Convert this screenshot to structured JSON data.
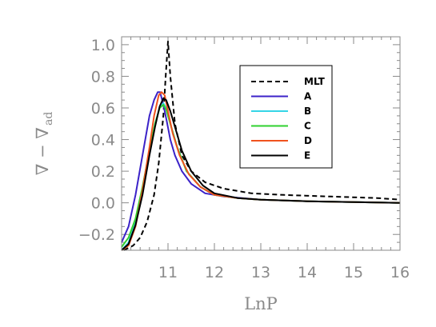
{
  "chart_data": {
    "type": "line",
    "title": "",
    "xlabel": "LnP",
    "ylabel": "∇ − ∇",
    "ylabel_subscript": "ad",
    "xlim": [
      10.0,
      16.0
    ],
    "ylim": [
      -0.3,
      1.05
    ],
    "xticks": [
      11,
      12,
      13,
      14,
      15,
      16
    ],
    "xtick_labels": [
      "11",
      "12",
      "13",
      "14",
      "15",
      "16"
    ],
    "yticks": [
      -0.2,
      0.0,
      0.2,
      0.4,
      0.6,
      0.8,
      1.0
    ],
    "ytick_labels": [
      "−0.2",
      "0.0",
      "0.2",
      "0.4",
      "0.6",
      "0.8",
      "1.0"
    ],
    "grid": false,
    "legend_position": "top-right",
    "series": [
      {
        "name": "MLT",
        "color": "#000000",
        "dash": "dashed",
        "x": [
          10.05,
          10.25,
          10.4,
          10.55,
          10.7,
          10.8,
          10.9,
          10.95,
          11.0,
          11.05,
          11.15,
          11.3,
          11.5,
          11.8,
          12.2,
          12.8,
          13.5,
          14.5,
          15.5,
          16.0
        ],
        "y": [
          -0.3,
          -0.27,
          -0.22,
          -0.12,
          0.05,
          0.25,
          0.55,
          0.8,
          1.02,
          0.8,
          0.5,
          0.3,
          0.2,
          0.13,
          0.09,
          0.06,
          0.05,
          0.04,
          0.03,
          0.02
        ]
      },
      {
        "name": "A",
        "color": "#3b22c8",
        "dash": "solid",
        "x": [
          10.0,
          10.15,
          10.3,
          10.45,
          10.6,
          10.7,
          10.78,
          10.83,
          10.9,
          10.97,
          11.05,
          11.15,
          11.3,
          11.5,
          11.8,
          12.2,
          13.0,
          14.0,
          15.0,
          16.0
        ],
        "y": [
          -0.25,
          -0.15,
          0.05,
          0.3,
          0.55,
          0.65,
          0.7,
          0.7,
          0.62,
          0.52,
          0.4,
          0.3,
          0.2,
          0.12,
          0.06,
          0.04,
          0.02,
          0.01,
          0.005,
          0.0
        ]
      },
      {
        "name": "B",
        "color": "#35d5e6",
        "dash": "solid",
        "x": [
          10.0,
          10.15,
          10.3,
          10.45,
          10.6,
          10.72,
          10.82,
          10.9,
          10.96,
          11.05,
          11.2,
          11.4,
          11.7,
          12.0,
          12.5,
          13.0,
          14.0,
          15.0,
          16.0
        ],
        "y": [
          -0.3,
          -0.25,
          -0.12,
          0.08,
          0.32,
          0.5,
          0.6,
          0.63,
          0.6,
          0.5,
          0.35,
          0.2,
          0.1,
          0.05,
          0.03,
          0.02,
          0.01,
          0.005,
          0.0
        ]
      },
      {
        "name": "C",
        "color": "#2fd12f",
        "dash": "solid",
        "x": [
          10.0,
          10.15,
          10.3,
          10.45,
          10.6,
          10.72,
          10.82,
          10.9,
          10.96,
          11.05,
          11.2,
          11.4,
          11.7,
          12.0,
          12.5,
          13.0,
          14.0,
          15.0,
          16.0
        ],
        "y": [
          -0.28,
          -0.22,
          -0.1,
          0.1,
          0.33,
          0.5,
          0.6,
          0.62,
          0.59,
          0.5,
          0.35,
          0.2,
          0.1,
          0.05,
          0.03,
          0.02,
          0.01,
          0.005,
          0.0
        ]
      },
      {
        "name": "D",
        "color": "#f0521e",
        "dash": "solid",
        "x": [
          10.0,
          10.15,
          10.3,
          10.45,
          10.6,
          10.7,
          10.8,
          10.86,
          10.93,
          11.0,
          11.1,
          11.25,
          11.45,
          11.7,
          12.0,
          12.5,
          13.0,
          14.0,
          15.0,
          16.0
        ],
        "y": [
          -0.3,
          -0.27,
          -0.15,
          0.08,
          0.35,
          0.55,
          0.68,
          0.7,
          0.68,
          0.58,
          0.44,
          0.3,
          0.18,
          0.1,
          0.05,
          0.03,
          0.02,
          0.01,
          0.005,
          0.0
        ]
      },
      {
        "name": "E",
        "color": "#000000",
        "dash": "solid",
        "x": [
          10.0,
          10.15,
          10.3,
          10.45,
          10.6,
          10.72,
          10.82,
          10.9,
          10.96,
          11.05,
          11.15,
          11.3,
          11.5,
          11.75,
          12.0,
          12.5,
          13.0,
          14.0,
          15.0,
          16.0
        ],
        "y": [
          -0.3,
          -0.26,
          -0.14,
          0.05,
          0.3,
          0.48,
          0.61,
          0.66,
          0.65,
          0.58,
          0.48,
          0.33,
          0.2,
          0.11,
          0.06,
          0.03,
          0.02,
          0.01,
          0.005,
          0.0
        ]
      }
    ]
  }
}
